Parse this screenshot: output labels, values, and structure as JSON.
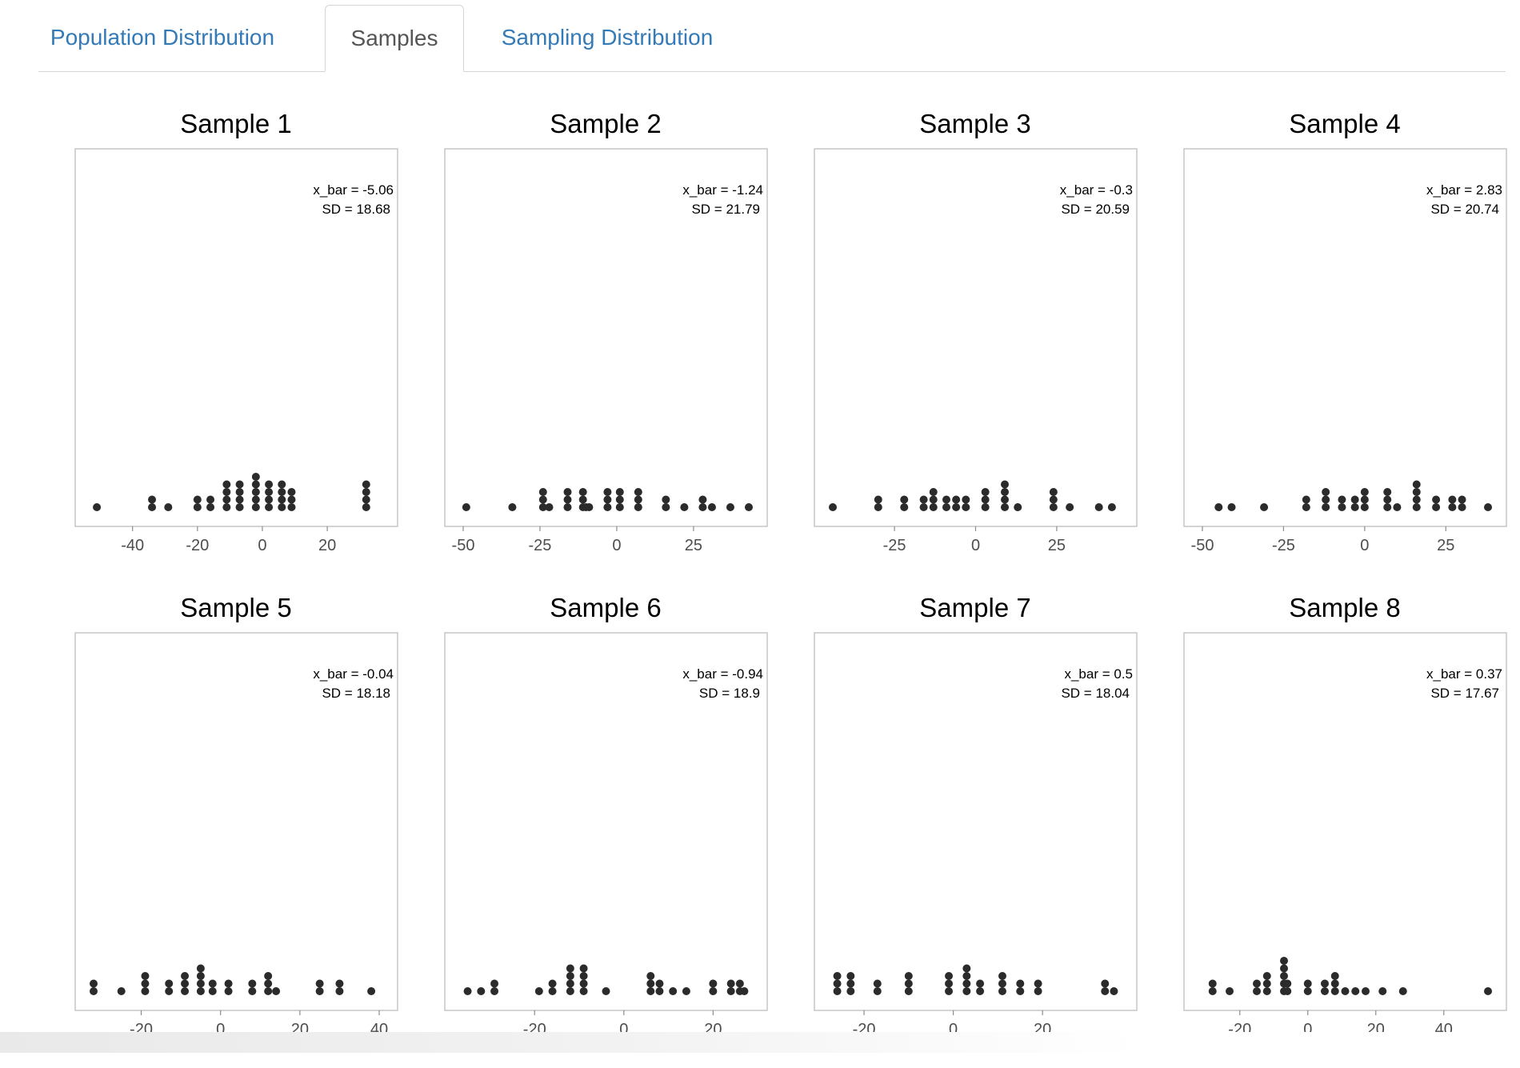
{
  "tabs": [
    {
      "label": "Population Distribution",
      "active": false
    },
    {
      "label": "Samples",
      "active": true
    },
    {
      "label": "Sampling Distribution",
      "active": false
    }
  ],
  "colors": {
    "dot": "#2b2b2b",
    "frame": "#bdbdbd",
    "tick_text": "#4d4d4d",
    "tab_link": "#337ab7"
  },
  "chart_data": [
    {
      "type": "scatter",
      "title": "Sample 1",
      "stat_mean": "x_bar = -5.06",
      "stat_sd": "SD = 18.68",
      "xlim": [
        -52,
        36
      ],
      "xticks": [
        -40,
        -20,
        0,
        20
      ],
      "x": [
        -51,
        -34,
        -34,
        -29,
        -20,
        -20,
        -16,
        -16,
        -11,
        -11,
        -11,
        -11,
        -7,
        -7,
        -7,
        -7,
        -2,
        -2,
        -2,
        -2,
        -2,
        2,
        2,
        2,
        2,
        6,
        6,
        6,
        6,
        9,
        9,
        9,
        32,
        32,
        32,
        32
      ]
    },
    {
      "type": "scatter",
      "title": "Sample 2",
      "stat_mean": "x_bar = -1.24",
      "stat_sd": "SD = 21.79",
      "xlim": [
        -50,
        43
      ],
      "xticks": [
        -50,
        -25,
        0,
        25
      ],
      "x": [
        -49,
        -34,
        -24,
        -24,
        -24,
        -22,
        -16,
        -16,
        -16,
        -11,
        -11,
        -11,
        -10,
        -9,
        -3,
        -3,
        -3,
        1,
        1,
        1,
        7,
        7,
        7,
        16,
        16,
        22,
        28,
        28,
        31,
        37,
        43
      ]
    },
    {
      "type": "scatter",
      "title": "Sample 3",
      "stat_mean": "x_bar = -0.3",
      "stat_sd": "SD = 20.59",
      "xlim": [
        -44,
        44
      ],
      "xticks": [
        -25,
        0,
        25
      ],
      "x": [
        -44,
        -30,
        -30,
        -22,
        -22,
        -16,
        -16,
        -13,
        -13,
        -13,
        -9,
        -9,
        -6,
        -6,
        -3,
        -3,
        3,
        3,
        3,
        9,
        9,
        9,
        9,
        13,
        24,
        24,
        24,
        29,
        38,
        42
      ]
    },
    {
      "type": "scatter",
      "title": "Sample 4",
      "stat_mean": "x_bar = 2.83",
      "stat_sd": "SD = 20.74",
      "xlim": [
        -50,
        38
      ],
      "xticks": [
        -50,
        -25,
        0,
        25
      ],
      "x": [
        -45,
        -41,
        -31,
        -18,
        -18,
        -12,
        -12,
        -12,
        -7,
        -7,
        -3,
        -3,
        0,
        0,
        0,
        7,
        7,
        7,
        10,
        16,
        16,
        16,
        16,
        22,
        22,
        27,
        27,
        30,
        30,
        38
      ]
    },
    {
      "type": "scatter",
      "title": "Sample 5",
      "stat_mean": "x_bar = -0.04",
      "stat_sd": "SD = 18.18",
      "xlim": [
        -32,
        40
      ],
      "xticks": [
        -20,
        0,
        20,
        40
      ],
      "x": [
        -32,
        -32,
        -25,
        -19,
        -19,
        -19,
        -13,
        -13,
        -9,
        -9,
        -9,
        -5,
        -5,
        -5,
        -5,
        -2,
        -2,
        2,
        2,
        8,
        8,
        12,
        12,
        12,
        14,
        25,
        25,
        30,
        30,
        38
      ]
    },
    {
      "type": "scatter",
      "title": "Sample 6",
      "stat_mean": "x_bar = -0.94",
      "stat_sd": "SD = 18.9",
      "xlim": [
        -36,
        28
      ],
      "xticks": [
        -20,
        0,
        20
      ],
      "x": [
        -35,
        -32,
        -29,
        -29,
        -19,
        -16,
        -16,
        -12,
        -12,
        -12,
        -12,
        -9,
        -9,
        -9,
        -9,
        -4,
        6,
        6,
        6,
        8,
        8,
        11,
        14,
        20,
        20,
        24,
        24,
        26,
        26,
        27
      ]
    },
    {
      "type": "scatter",
      "title": "Sample 7",
      "stat_mean": "x_bar = 0.5",
      "stat_sd": "SD = 18.04",
      "xlim": [
        -27,
        37
      ],
      "xticks": [
        -20,
        0,
        20
      ],
      "x": [
        -26,
        -26,
        -26,
        -23,
        -23,
        -23,
        -17,
        -17,
        -10,
        -10,
        -10,
        -1,
        -1,
        -1,
        3,
        3,
        3,
        3,
        6,
        6,
        11,
        11,
        11,
        15,
        15,
        19,
        19,
        34,
        34,
        36
      ]
    },
    {
      "type": "scatter",
      "title": "Sample 8",
      "stat_mean": "x_bar = 0.37",
      "stat_sd": "SD = 17.67",
      "xlim": [
        -31,
        53
      ],
      "xticks": [
        -20,
        0,
        20,
        40
      ],
      "x": [
        -28,
        -28,
        -23,
        -15,
        -15,
        -12,
        -12,
        -12,
        -7,
        -7,
        -7,
        -7,
        -7,
        -6,
        -6,
        0,
        0,
        5,
        5,
        8,
        8,
        8,
        11,
        14,
        17,
        22,
        28,
        53
      ]
    }
  ]
}
